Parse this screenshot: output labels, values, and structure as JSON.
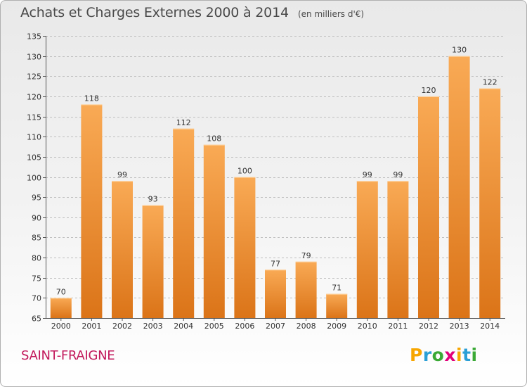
{
  "title": "Achats et Charges Externes 2000 à 2014",
  "unit": "(en milliers d'€)",
  "commune": "SAINT-FRAIGNE",
  "brand": {
    "letters": [
      "P",
      "r",
      "o",
      "x",
      "i",
      "t",
      "i"
    ],
    "colors": [
      "#f7a600",
      "#2a9fd6",
      "#3aa935",
      "#e2007a",
      "#f7a600",
      "#2a9fd6",
      "#3aa935"
    ]
  },
  "colors": {
    "bar_light": "#f9aa55",
    "bar_dark": "#db7418",
    "bar_top": "#fdd7a8",
    "grid": "#bfbfbf",
    "title": "#4a4a4a",
    "commune": "#c2185b"
  },
  "chart_data": {
    "type": "bar",
    "title": "Achats et Charges Externes 2000 à 2014",
    "subtitle": "(en milliers d'€)",
    "xlabel": "",
    "ylabel": "",
    "categories": [
      "2000",
      "2001",
      "2002",
      "2003",
      "2004",
      "2005",
      "2006",
      "2007",
      "2008",
      "2009",
      "2010",
      "2011",
      "2012",
      "2013",
      "2014"
    ],
    "values": [
      70,
      118,
      99,
      93,
      112,
      108,
      100,
      77,
      79,
      71,
      99,
      99,
      120,
      130,
      122
    ],
    "ylim": [
      65,
      135
    ],
    "yticks": [
      65,
      70,
      75,
      80,
      85,
      90,
      95,
      100,
      105,
      110,
      115,
      120,
      125,
      130,
      135
    ],
    "grid": true,
    "data_labels": true
  }
}
